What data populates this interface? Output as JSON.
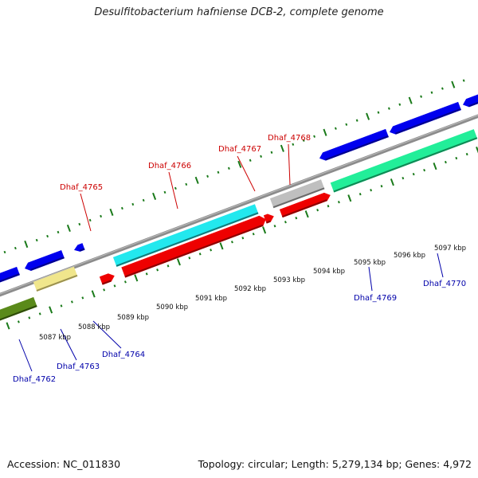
{
  "title": "Desulfitobacterium hafniense DCB-2, complete genome",
  "footer": {
    "accession": "Accession: NC_011830",
    "summary": "Topology: circular; Length: 5,279,134 bp; Genes: 4,972"
  },
  "axis": {
    "unit_labels": [
      {
        "kbp": 5087,
        "text": "5087 kbp"
      },
      {
        "kbp": 5088,
        "text": "5088 kbp"
      },
      {
        "kbp": 5089,
        "text": "5089 kbp"
      },
      {
        "kbp": 5090,
        "text": "5090 kbp"
      },
      {
        "kbp": 5091,
        "text": "5091 kbp"
      },
      {
        "kbp": 5092,
        "text": "5092 kbp"
      },
      {
        "kbp": 5093,
        "text": "5093 kbp"
      },
      {
        "kbp": 5094,
        "text": "5094 kbp"
      },
      {
        "kbp": 5095,
        "text": "5095 kbp"
      },
      {
        "kbp": 5096,
        "text": "5096 kbp"
      },
      {
        "kbp": 5097,
        "text": "5097 kbp"
      }
    ]
  },
  "genes": [
    {
      "id": "Dhaf_4762",
      "strand": "reverse",
      "color": "#0000ee",
      "label_color": "blue"
    },
    {
      "id": "Dhaf_4763",
      "strand": "reverse",
      "color": "#0000ee",
      "label_color": "blue"
    },
    {
      "id": "Dhaf_4764",
      "strand": "reverse",
      "color": "#0000ee",
      "label_color": "blue"
    },
    {
      "id": "Dhaf_4765",
      "strand": "forward",
      "color": "#ee0000",
      "label_color": "red"
    },
    {
      "id": "Dhaf_4766",
      "strand": "forward",
      "color": "#ee0000",
      "label_color": "red"
    },
    {
      "id": "Dhaf_4767",
      "strand": "forward",
      "color": "#ee0000",
      "label_color": "red"
    },
    {
      "id": "Dhaf_4768",
      "strand": "forward",
      "color": "#ee0000",
      "label_color": "red"
    },
    {
      "id": "Dhaf_4769",
      "strand": "reverse",
      "color": "#0000ee",
      "label_color": "blue"
    },
    {
      "id": "Dhaf_4770",
      "strand": "reverse",
      "color": "#0000ee",
      "label_color": "blue"
    }
  ],
  "colors": {
    "backbone": "#8c8c8c",
    "tick": "#1a7a1a",
    "cyan_feature": "#22e8ee",
    "green_feature": "#22ee99",
    "olive_feature": "#5a8a1a",
    "yellow_feature": "#f0e68c",
    "grey_feature": "#bfbfbf"
  }
}
